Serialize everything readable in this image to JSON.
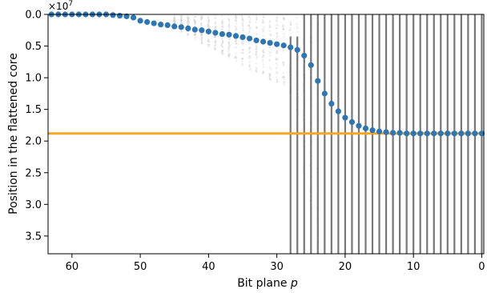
{
  "chart_data": {
    "type": "scatter",
    "xlabel": "Bit plane",
    "xlabel_var": "p",
    "ylabel": "Position in the flattened core",
    "y_multiplier": "×10",
    "y_multiplier_exp": "7",
    "xlim": [
      63.5,
      -0.3
    ],
    "ylim": [
      37800000.0,
      0
    ],
    "x_ticks": [
      60,
      50,
      40,
      30,
      20,
      10,
      0
    ],
    "y_ticks": [
      0,
      0.5,
      1.0,
      1.5,
      2.0,
      2.5,
      3.0,
      3.5
    ],
    "y_tick_labels": [
      "0.0",
      "0.5",
      "1.0",
      "1.5",
      "2.0",
      "2.5",
      "3.0",
      "3.5"
    ],
    "grid": false,
    "horizontal_line": {
      "y": 18800000.0,
      "color": "#f5a623"
    },
    "colors": {
      "points": "#2e75b6",
      "bars": "#555555",
      "scatter_cloud": "#c8c8c8"
    },
    "series": [
      {
        "bit_plane": [
          63,
          62,
          61,
          60,
          59,
          58,
          57,
          56,
          55,
          54,
          53,
          52,
          51,
          50,
          49,
          48,
          47,
          46,
          45,
          44,
          43,
          42,
          41,
          40,
          39,
          38,
          37,
          36,
          35,
          34,
          33,
          32,
          31,
          30,
          29,
          28,
          27,
          26,
          25,
          24,
          23,
          22,
          21,
          20,
          19,
          18,
          17,
          16,
          15,
          14,
          13,
          12,
          11,
          10,
          9,
          8,
          7,
          6,
          5,
          4,
          3,
          2,
          1,
          0
        ],
        "position_e7": [
          0.0,
          0.0,
          0.0,
          0.0,
          0.0,
          0.0,
          0.0,
          0.0,
          0.0,
          0.01,
          0.02,
          0.03,
          0.05,
          0.1,
          0.12,
          0.14,
          0.16,
          0.17,
          0.19,
          0.2,
          0.22,
          0.24,
          0.25,
          0.27,
          0.29,
          0.31,
          0.32,
          0.34,
          0.36,
          0.38,
          0.41,
          0.43,
          0.45,
          0.47,
          0.49,
          0.52,
          0.56,
          0.65,
          0.8,
          1.05,
          1.25,
          1.41,
          1.53,
          1.63,
          1.7,
          1.76,
          1.8,
          1.83,
          1.85,
          1.86,
          1.87,
          1.87,
          1.88,
          1.88,
          1.88,
          1.88,
          1.88,
          1.88,
          1.88,
          1.88,
          1.88,
          1.88,
          1.88,
          1.88
        ]
      }
    ]
  }
}
